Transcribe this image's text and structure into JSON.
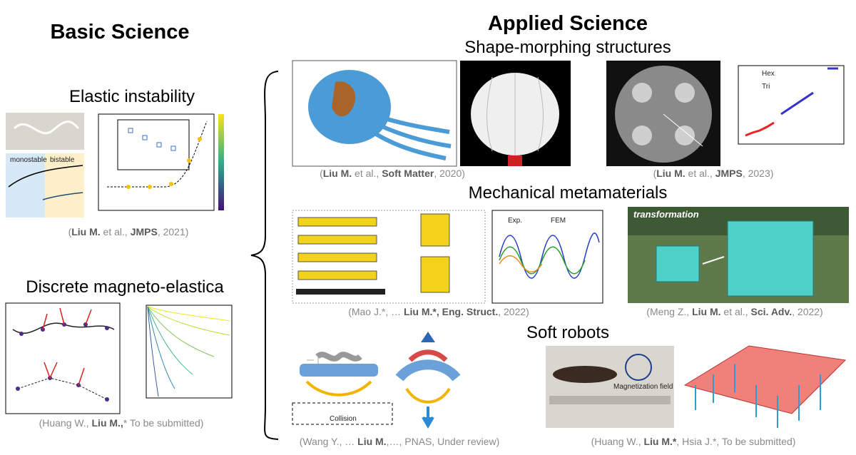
{
  "basic": {
    "title": "Basic Science",
    "sections": [
      {
        "title": "Elastic instability",
        "figure_text": [
          "monostable",
          "bistable"
        ],
        "citation": [
          "(",
          "Liu M.",
          " et al., ",
          "JMPS",
          ", 2021)"
        ]
      },
      {
        "title": "Discrete magneto-elastica",
        "citation": [
          "(Huang W., ",
          "Liu M.,",
          "* To be submitted)"
        ]
      }
    ]
  },
  "applied": {
    "title": "Applied Science",
    "sections": [
      {
        "title": "Shape-morphing structures",
        "figure_text": [
          "Hex",
          "Tri"
        ],
        "citations": [
          [
            "(",
            "Liu M.",
            " et al., ",
            "Soft Matter",
            ", 2020)"
          ],
          [
            "(",
            "Liu M.",
            " et al., ",
            "JMPS",
            ", 2023)"
          ]
        ]
      },
      {
        "title": "Mechanical metamaterials",
        "figure_text": [
          "Exp.",
          "FEM",
          "transformation"
        ],
        "citations": [
          [
            "(Mao J.*, … ",
            "Liu M.*, Eng. Struct.",
            ", 2022)"
          ],
          [
            "(Meng Z., ",
            "Liu M.",
            " et al., ",
            "Sci. Adv.",
            ", 2022)"
          ]
        ]
      },
      {
        "title": "Soft robots",
        "figure_text": [
          "Magnetization field",
          "Collision"
        ],
        "citations": [
          [
            "(Wang Y., … ",
            "Liu M.",
            ",…, PNAS, Under review)"
          ],
          [
            "(Huang W., ",
            "Liu M.*",
            ", Hsia J.*, To be submitted)"
          ]
        ]
      }
    ]
  }
}
